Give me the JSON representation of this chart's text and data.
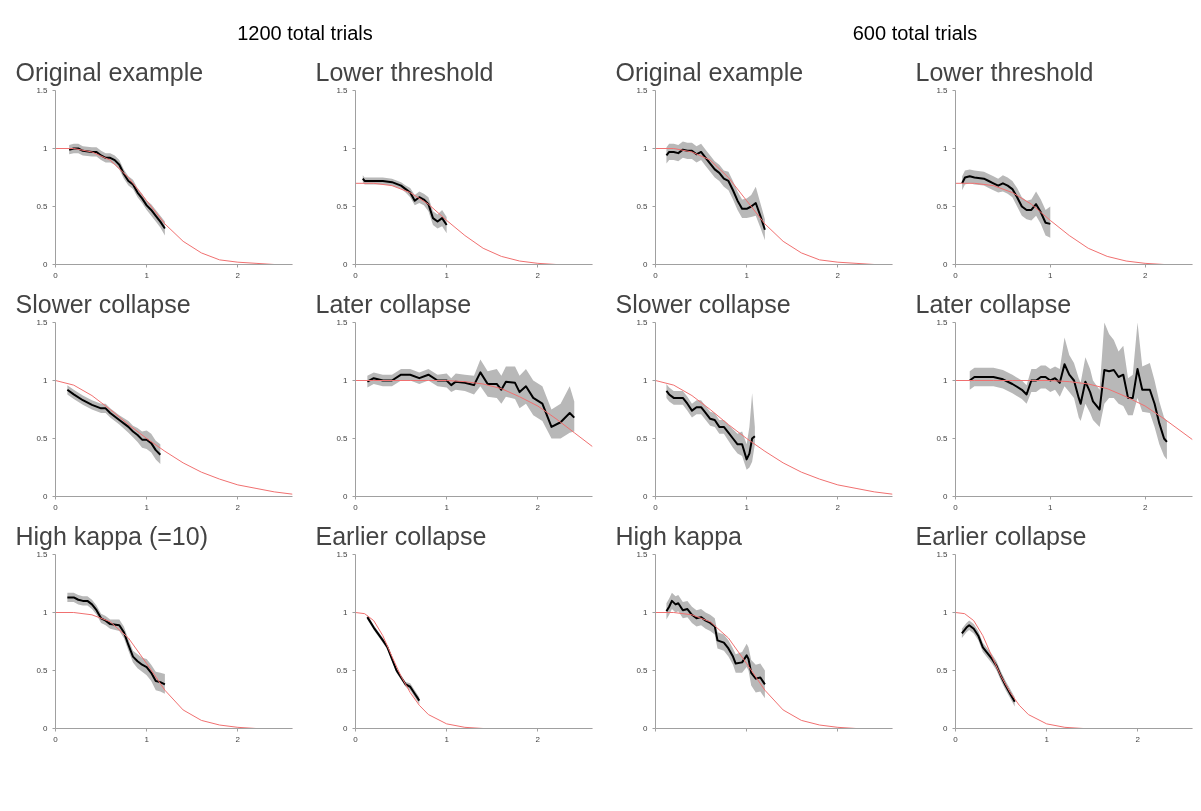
{
  "chart_data": [
    {
      "type": "line",
      "title": "Original example",
      "annotations": [
        "1200 total trials"
      ],
      "xlim": [
        0,
        2.6
      ],
      "ylim": [
        0,
        1.5
      ],
      "xticks": [
        0,
        1,
        2
      ],
      "yticks": [
        0,
        0.5,
        1,
        1.5
      ],
      "series": [
        {
          "color": "#f07070",
          "x": [
            0,
            0.2,
            0.4,
            0.6,
            0.8,
            1.0,
            1.2,
            1.4,
            1.6,
            1.8,
            2.0,
            2.2,
            2.4,
            2.6
          ],
          "values": [
            1,
            1.0,
            0.97,
            0.9,
            0.75,
            0.55,
            0.35,
            0.2,
            0.1,
            0.04,
            0.02,
            0.01,
            0.0,
            0.0
          ]
        },
        {
          "color": "#000000",
          "x": [
            0.15,
            0.2,
            0.25,
            0.3,
            0.4,
            0.45,
            0.5,
            0.55,
            0.6,
            0.65,
            0.7,
            0.75,
            0.8,
            0.85,
            0.9,
            0.95,
            1.0,
            1.05,
            1.1,
            1.15,
            1.2
          ],
          "values": [
            0.99,
            1.0,
            1.0,
            0.98,
            0.97,
            0.97,
            0.94,
            0.92,
            0.92,
            0.9,
            0.86,
            0.78,
            0.72,
            0.69,
            0.62,
            0.57,
            0.51,
            0.47,
            0.42,
            0.37,
            0.31
          ],
          "lower": [
            0.95,
            0.96,
            0.96,
            0.94,
            0.93,
            0.93,
            0.9,
            0.88,
            0.88,
            0.86,
            0.82,
            0.74,
            0.68,
            0.65,
            0.58,
            0.53,
            0.47,
            0.42,
            0.37,
            0.32,
            0.25
          ],
          "upper": [
            1.03,
            1.04,
            1.04,
            1.02,
            1.01,
            1.01,
            0.98,
            0.96,
            0.96,
            0.94,
            0.9,
            0.82,
            0.76,
            0.73,
            0.66,
            0.61,
            0.55,
            0.52,
            0.47,
            0.42,
            0.37
          ]
        }
      ]
    },
    {
      "type": "line",
      "title": "Lower threshold",
      "xlim": [
        0,
        2.6
      ],
      "ylim": [
        0,
        1.5
      ],
      "xticks": [
        0,
        1,
        2
      ],
      "yticks": [
        0,
        0.5,
        1,
        1.5
      ],
      "series": [
        {
          "color": "#f07070",
          "x": [
            0,
            0.2,
            0.4,
            0.6,
            0.8,
            1.0,
            1.2,
            1.4,
            1.6,
            1.8,
            2.0,
            2.2,
            2.4,
            2.6
          ],
          "values": [
            0.7,
            0.7,
            0.68,
            0.62,
            0.52,
            0.38,
            0.25,
            0.14,
            0.07,
            0.03,
            0.01,
            0.0,
            0.0,
            0.0
          ]
        },
        {
          "color": "#000000",
          "x": [
            0.08,
            0.1,
            0.2,
            0.3,
            0.4,
            0.5,
            0.55,
            0.6,
            0.65,
            0.7,
            0.75,
            0.8,
            0.85,
            0.9,
            0.95,
            1.0
          ],
          "values": [
            0.74,
            0.72,
            0.72,
            0.72,
            0.71,
            0.68,
            0.65,
            0.62,
            0.55,
            0.58,
            0.56,
            0.52,
            0.4,
            0.37,
            0.4,
            0.34
          ],
          "lower": [
            0.71,
            0.69,
            0.69,
            0.69,
            0.68,
            0.65,
            0.62,
            0.58,
            0.51,
            0.53,
            0.51,
            0.46,
            0.34,
            0.31,
            0.33,
            0.27
          ],
          "upper": [
            0.77,
            0.75,
            0.75,
            0.75,
            0.74,
            0.71,
            0.68,
            0.66,
            0.6,
            0.63,
            0.61,
            0.58,
            0.46,
            0.43,
            0.47,
            0.41
          ]
        }
      ]
    },
    {
      "type": "line",
      "title": "Original example",
      "annotations": [
        "600 total trials"
      ],
      "xlim": [
        0,
        2.6
      ],
      "ylim": [
        0,
        1.5
      ],
      "xticks": [
        0,
        1,
        2
      ],
      "yticks": [
        0,
        0.5,
        1,
        1.5
      ],
      "series": [
        {
          "color": "#f07070",
          "x": [
            0,
            0.2,
            0.4,
            0.6,
            0.8,
            1.0,
            1.2,
            1.4,
            1.6,
            1.8,
            2.0,
            2.2,
            2.4,
            2.6
          ],
          "values": [
            1,
            1.0,
            0.97,
            0.9,
            0.75,
            0.55,
            0.35,
            0.2,
            0.1,
            0.04,
            0.02,
            0.01,
            0.0,
            0.0
          ]
        },
        {
          "color": "#000000",
          "x": [
            0.12,
            0.15,
            0.2,
            0.25,
            0.3,
            0.35,
            0.4,
            0.45,
            0.5,
            0.55,
            0.6,
            0.65,
            0.7,
            0.75,
            0.8,
            0.85,
            0.9,
            0.95,
            1.0,
            1.05,
            1.1,
            1.15,
            1.2
          ],
          "values": [
            0.94,
            0.97,
            0.97,
            0.96,
            0.99,
            0.98,
            0.98,
            0.95,
            0.97,
            0.92,
            0.87,
            0.82,
            0.79,
            0.74,
            0.72,
            0.64,
            0.55,
            0.48,
            0.48,
            0.5,
            0.53,
            0.42,
            0.3
          ],
          "lower": [
            0.87,
            0.9,
            0.9,
            0.89,
            0.92,
            0.91,
            0.91,
            0.88,
            0.9,
            0.85,
            0.8,
            0.75,
            0.72,
            0.67,
            0.64,
            0.56,
            0.47,
            0.4,
            0.4,
            0.41,
            0.42,
            0.32,
            0.21
          ],
          "upper": [
            1.01,
            1.04,
            1.04,
            1.03,
            1.06,
            1.05,
            1.05,
            1.02,
            1.04,
            0.99,
            0.94,
            0.89,
            0.86,
            0.81,
            0.8,
            0.72,
            0.63,
            0.56,
            0.57,
            0.6,
            0.67,
            0.53,
            0.39
          ]
        }
      ]
    },
    {
      "type": "line",
      "title": "Lower threshold",
      "xlim": [
        0,
        2.5
      ],
      "ylim": [
        0,
        1.5
      ],
      "xticks": [
        0,
        1,
        2
      ],
      "yticks": [
        0,
        0.5,
        1,
        1.5
      ],
      "series": [
        {
          "color": "#f07070",
          "x": [
            0,
            0.2,
            0.4,
            0.6,
            0.8,
            1.0,
            1.2,
            1.4,
            1.6,
            1.8,
            2.0,
            2.2,
            2.4,
            2.5
          ],
          "values": [
            0.7,
            0.7,
            0.68,
            0.62,
            0.52,
            0.38,
            0.25,
            0.14,
            0.07,
            0.03,
            0.01,
            0.0,
            0.0,
            0.0
          ]
        },
        {
          "color": "#000000",
          "x": [
            0.07,
            0.1,
            0.15,
            0.2,
            0.3,
            0.35,
            0.4,
            0.45,
            0.5,
            0.55,
            0.6,
            0.65,
            0.7,
            0.75,
            0.8,
            0.85,
            0.9,
            0.95,
            1.0
          ],
          "values": [
            0.7,
            0.75,
            0.76,
            0.75,
            0.74,
            0.72,
            0.7,
            0.68,
            0.7,
            0.68,
            0.65,
            0.58,
            0.5,
            0.47,
            0.47,
            0.52,
            0.45,
            0.36,
            0.35
          ],
          "lower": [
            0.64,
            0.69,
            0.7,
            0.69,
            0.68,
            0.66,
            0.64,
            0.62,
            0.63,
            0.61,
            0.58,
            0.5,
            0.42,
            0.39,
            0.38,
            0.42,
            0.35,
            0.25,
            0.23
          ],
          "upper": [
            0.76,
            0.81,
            0.82,
            0.81,
            0.8,
            0.78,
            0.76,
            0.74,
            0.77,
            0.75,
            0.72,
            0.66,
            0.58,
            0.55,
            0.56,
            0.63,
            0.56,
            0.47,
            0.5
          ]
        }
      ]
    },
    {
      "type": "line",
      "title": "Slower collapse",
      "xlim": [
        0,
        2.6
      ],
      "ylim": [
        0,
        1.5
      ],
      "xticks": [
        0,
        1,
        2
      ],
      "yticks": [
        0,
        0.5,
        1,
        1.5
      ],
      "series": [
        {
          "color": "#f07070",
          "x": [
            0,
            0.2,
            0.4,
            0.6,
            0.8,
            1.0,
            1.2,
            1.4,
            1.6,
            1.8,
            2.0,
            2.2,
            2.4,
            2.6
          ],
          "values": [
            1,
            0.96,
            0.87,
            0.75,
            0.62,
            0.5,
            0.39,
            0.29,
            0.21,
            0.15,
            0.1,
            0.07,
            0.04,
            0.02
          ]
        },
        {
          "color": "#000000",
          "x": [
            0.13,
            0.2,
            0.3,
            0.4,
            0.5,
            0.55,
            0.6,
            0.7,
            0.8,
            0.85,
            0.9,
            0.95,
            1.0,
            1.05,
            1.1,
            1.15
          ],
          "values": [
            0.92,
            0.88,
            0.83,
            0.79,
            0.76,
            0.76,
            0.72,
            0.66,
            0.6,
            0.56,
            0.53,
            0.49,
            0.49,
            0.46,
            0.4,
            0.36
          ],
          "lower": [
            0.88,
            0.84,
            0.79,
            0.75,
            0.72,
            0.72,
            0.68,
            0.62,
            0.55,
            0.51,
            0.47,
            0.42,
            0.41,
            0.38,
            0.32,
            0.28
          ],
          "upper": [
            0.96,
            0.92,
            0.87,
            0.83,
            0.8,
            0.8,
            0.76,
            0.7,
            0.65,
            0.61,
            0.59,
            0.56,
            0.57,
            0.54,
            0.48,
            0.45
          ]
        }
      ]
    },
    {
      "type": "line",
      "title": "Later collapse",
      "xlim": [
        0,
        2.6
      ],
      "ylim": [
        0,
        1.5
      ],
      "xticks": [
        0,
        1,
        2
      ],
      "yticks": [
        0,
        0.5,
        1,
        1.5
      ],
      "series": [
        {
          "color": "#f07070",
          "x": [
            0,
            0.2,
            0.4,
            0.6,
            0.8,
            1.0,
            1.2,
            1.4,
            1.6,
            1.8,
            2.0,
            2.2,
            2.4,
            2.6
          ],
          "values": [
            1,
            1,
            1,
            1.0,
            1.0,
            1.0,
            0.99,
            0.97,
            0.93,
            0.86,
            0.78,
            0.67,
            0.55,
            0.43
          ]
        },
        {
          "color": "#000000",
          "x": [
            0.13,
            0.2,
            0.3,
            0.4,
            0.5,
            0.6,
            0.7,
            0.8,
            0.9,
            1.0,
            1.05,
            1.1,
            1.2,
            1.3,
            1.37,
            1.45,
            1.55,
            1.6,
            1.65,
            1.75,
            1.8,
            1.87,
            1.95,
            2.05,
            2.15,
            2.25,
            2.35,
            2.4
          ],
          "values": [
            0.99,
            1.02,
            1.0,
            1.0,
            1.05,
            1.05,
            1.02,
            1.05,
            1.0,
            1.0,
            0.96,
            0.99,
            0.98,
            0.96,
            1.07,
            0.97,
            0.97,
            0.92,
            0.99,
            0.98,
            0.9,
            0.95,
            0.85,
            0.8,
            0.6,
            0.64,
            0.72,
            0.68
          ],
          "lower": [
            0.94,
            0.97,
            0.95,
            0.95,
            1.0,
            1.0,
            0.97,
            1.0,
            0.95,
            0.94,
            0.9,
            0.92,
            0.91,
            0.88,
            0.95,
            0.86,
            0.85,
            0.8,
            0.86,
            0.84,
            0.76,
            0.8,
            0.7,
            0.65,
            0.5,
            0.5,
            0.55,
            0.56
          ],
          "upper": [
            1.04,
            1.07,
            1.05,
            1.05,
            1.1,
            1.1,
            1.07,
            1.1,
            1.05,
            1.06,
            1.02,
            1.06,
            1.05,
            1.04,
            1.18,
            1.08,
            1.1,
            1.04,
            1.12,
            1.12,
            1.04,
            1.1,
            1.0,
            0.95,
            0.75,
            0.8,
            0.95,
            0.82
          ]
        }
      ]
    },
    {
      "type": "line",
      "title": "Slower collapse",
      "xlim": [
        0,
        2.6
      ],
      "ylim": [
        0,
        1.5
      ],
      "xticks": [
        0,
        1,
        2
      ],
      "yticks": [
        0,
        0.5,
        1,
        1.5
      ],
      "series": [
        {
          "color": "#f07070",
          "x": [
            0,
            0.2,
            0.4,
            0.6,
            0.8,
            1.0,
            1.2,
            1.4,
            1.6,
            1.8,
            2.0,
            2.2,
            2.4,
            2.6
          ],
          "values": [
            1,
            0.96,
            0.87,
            0.75,
            0.62,
            0.5,
            0.39,
            0.29,
            0.21,
            0.15,
            0.1,
            0.07,
            0.04,
            0.02
          ]
        },
        {
          "color": "#000000",
          "x": [
            0.12,
            0.15,
            0.2,
            0.3,
            0.35,
            0.4,
            0.45,
            0.5,
            0.55,
            0.6,
            0.65,
            0.7,
            0.75,
            0.8,
            0.85,
            0.9,
            0.95,
            1.0,
            1.03,
            1.06,
            1.09
          ],
          "values": [
            0.91,
            0.88,
            0.85,
            0.85,
            0.8,
            0.74,
            0.77,
            0.77,
            0.72,
            0.67,
            0.66,
            0.6,
            0.6,
            0.55,
            0.5,
            0.45,
            0.45,
            0.32,
            0.37,
            0.5,
            0.52
          ],
          "lower": [
            0.85,
            0.82,
            0.79,
            0.79,
            0.74,
            0.68,
            0.71,
            0.71,
            0.66,
            0.61,
            0.6,
            0.54,
            0.54,
            0.48,
            0.42,
            0.37,
            0.35,
            0.23,
            0.25,
            0.3,
            0.45
          ],
          "upper": [
            0.97,
            0.94,
            0.91,
            0.91,
            0.86,
            0.8,
            0.83,
            0.83,
            0.78,
            0.73,
            0.72,
            0.66,
            0.66,
            0.62,
            0.58,
            0.54,
            0.56,
            0.45,
            0.6,
            0.89,
            0.6
          ]
        }
      ]
    },
    {
      "type": "line",
      "title": "Later collapse",
      "xlim": [
        0,
        2.5
      ],
      "ylim": [
        0,
        1.5
      ],
      "xticks": [
        0,
        1,
        2
      ],
      "yticks": [
        0,
        0.5,
        1,
        1.5
      ],
      "series": [
        {
          "color": "#f07070",
          "x": [
            0,
            0.2,
            0.4,
            0.6,
            0.8,
            1.0,
            1.2,
            1.4,
            1.6,
            1.8,
            2.0,
            2.2,
            2.4,
            2.5
          ],
          "values": [
            1,
            1,
            1,
            1.0,
            1.0,
            1.0,
            0.99,
            0.97,
            0.93,
            0.86,
            0.78,
            0.67,
            0.55,
            0.49
          ]
        },
        {
          "color": "#000000",
          "x": [
            0.15,
            0.2,
            0.3,
            0.4,
            0.5,
            0.6,
            0.7,
            0.75,
            0.8,
            0.85,
            0.9,
            0.95,
            1.0,
            1.05,
            1.1,
            1.15,
            1.2,
            1.25,
            1.3,
            1.32,
            1.37,
            1.42,
            1.45,
            1.52,
            1.57,
            1.62,
            1.67,
            1.72,
            1.77,
            1.82,
            1.87,
            1.92,
            1.97,
            2.05,
            2.1,
            2.15,
            2.2,
            2.23
          ],
          "values": [
            1.0,
            1.03,
            1.03,
            1.03,
            1.01,
            0.97,
            0.92,
            0.88,
            1.0,
            1.0,
            1.03,
            1.03,
            1.0,
            1.02,
            0.98,
            1.14,
            1.05,
            1.0,
            0.85,
            0.8,
            0.99,
            0.9,
            0.82,
            0.75,
            1.09,
            1.08,
            1.09,
            1.03,
            1.05,
            0.85,
            0.85,
            1.1,
            0.92,
            0.92,
            0.8,
            0.63,
            0.5,
            0.47
          ],
          "lower": [
            0.92,
            0.95,
            0.95,
            0.95,
            0.93,
            0.89,
            0.84,
            0.8,
            0.9,
            0.9,
            0.93,
            0.93,
            0.9,
            0.92,
            0.86,
            0.95,
            0.9,
            0.85,
            0.68,
            0.65,
            0.8,
            0.72,
            0.66,
            0.6,
            0.8,
            0.85,
            0.85,
            0.8,
            0.78,
            0.7,
            0.7,
            0.85,
            0.73,
            0.72,
            0.6,
            0.45,
            0.35,
            0.32
          ],
          "upper": [
            1.08,
            1.11,
            1.11,
            1.11,
            1.09,
            1.05,
            1.0,
            0.96,
            1.1,
            1.1,
            1.13,
            1.13,
            1.1,
            1.12,
            1.1,
            1.37,
            1.22,
            1.15,
            1.02,
            0.98,
            1.2,
            1.1,
            1.0,
            0.92,
            1.5,
            1.4,
            1.35,
            1.25,
            1.3,
            1.02,
            1.05,
            1.5,
            1.12,
            1.15,
            1.0,
            0.82,
            0.68,
            0.65
          ]
        }
      ]
    },
    {
      "type": "line",
      "title": "High kappa (=10)",
      "xlim": [
        0,
        2.6
      ],
      "ylim": [
        0,
        1.5
      ],
      "xticks": [
        0,
        1,
        2
      ],
      "yticks": [
        0,
        0.5,
        1,
        1.5
      ],
      "series": [
        {
          "color": "#f07070",
          "x": [
            0,
            0.2,
            0.4,
            0.6,
            0.8,
            1.0,
            1.2,
            1.4,
            1.6,
            1.8,
            2.0,
            2.2,
            2.4,
            2.6
          ],
          "values": [
            1,
            1.0,
            0.98,
            0.92,
            0.78,
            0.56,
            0.33,
            0.16,
            0.07,
            0.03,
            0.01,
            0.0,
            0.0,
            0.0
          ]
        },
        {
          "color": "#000000",
          "x": [
            0.13,
            0.2,
            0.25,
            0.3,
            0.35,
            0.4,
            0.45,
            0.5,
            0.55,
            0.6,
            0.7,
            0.75,
            0.8,
            0.85,
            0.9,
            0.95,
            1.0,
            1.05,
            1.1,
            1.15,
            1.2
          ],
          "values": [
            1.13,
            1.13,
            1.11,
            1.1,
            1.1,
            1.07,
            1.02,
            0.95,
            0.93,
            0.9,
            0.89,
            0.83,
            0.72,
            0.62,
            0.58,
            0.55,
            0.53,
            0.48,
            0.41,
            0.4,
            0.38
          ],
          "lower": [
            1.09,
            1.09,
            1.07,
            1.06,
            1.06,
            1.03,
            0.98,
            0.91,
            0.89,
            0.86,
            0.84,
            0.78,
            0.67,
            0.57,
            0.52,
            0.49,
            0.46,
            0.41,
            0.33,
            0.32,
            0.3
          ],
          "upper": [
            1.17,
            1.17,
            1.15,
            1.14,
            1.14,
            1.11,
            1.06,
            0.99,
            0.97,
            0.94,
            0.94,
            0.88,
            0.77,
            0.67,
            0.64,
            0.61,
            0.6,
            0.55,
            0.49,
            0.48,
            0.47
          ]
        }
      ]
    },
    {
      "type": "line",
      "title": "Earlier collapse",
      "xlim": [
        0,
        2.6
      ],
      "ylim": [
        0,
        1.5
      ],
      "xticks": [
        0,
        1,
        2
      ],
      "yticks": [
        0,
        0.5,
        1,
        1.5
      ],
      "series": [
        {
          "color": "#f07070",
          "x": [
            0,
            0.1,
            0.2,
            0.3,
            0.4,
            0.5,
            0.6,
            0.7,
            0.8,
            1.0,
            1.2,
            1.4,
            2.0,
            2.6
          ],
          "values": [
            1,
            0.99,
            0.93,
            0.8,
            0.62,
            0.45,
            0.31,
            0.2,
            0.12,
            0.04,
            0.01,
            0.0,
            0.0,
            0.0
          ]
        },
        {
          "color": "#000000",
          "x": [
            0.13,
            0.2,
            0.3,
            0.35,
            0.4,
            0.45,
            0.5,
            0.55,
            0.6,
            0.65,
            0.7
          ],
          "values": [
            0.96,
            0.87,
            0.76,
            0.7,
            0.6,
            0.5,
            0.44,
            0.38,
            0.36,
            0.3,
            0.24
          ],
          "lower": [
            0.94,
            0.85,
            0.74,
            0.68,
            0.58,
            0.48,
            0.42,
            0.36,
            0.33,
            0.27,
            0.21
          ],
          "upper": [
            0.98,
            0.89,
            0.78,
            0.72,
            0.62,
            0.52,
            0.46,
            0.4,
            0.39,
            0.33,
            0.27
          ]
        }
      ]
    },
    {
      "type": "line",
      "title": "High kappa",
      "tick_labels": "y",
      "xlim": [
        0,
        2.6
      ],
      "ylim": [
        0,
        1.5
      ],
      "xticks": [
        0,
        1,
        2
      ],
      "yticks": [
        0,
        0.5,
        1,
        1.5
      ],
      "series": [
        {
          "color": "#f07070",
          "x": [
            0,
            0.2,
            0.4,
            0.6,
            0.8,
            1.0,
            1.2,
            1.4,
            1.6,
            1.8,
            2.0,
            2.2,
            2.4,
            2.6
          ],
          "values": [
            1,
            1.0,
            0.98,
            0.92,
            0.78,
            0.56,
            0.33,
            0.16,
            0.07,
            0.03,
            0.01,
            0.0,
            0.0,
            0.0
          ]
        },
        {
          "color": "#000000",
          "x": [
            0.12,
            0.15,
            0.18,
            0.22,
            0.25,
            0.3,
            0.35,
            0.4,
            0.45,
            0.5,
            0.55,
            0.6,
            0.65,
            0.68,
            0.75,
            0.8,
            0.85,
            0.88,
            0.95,
            1.0,
            1.02,
            1.05,
            1.1,
            1.15,
            1.2
          ],
          "values": [
            1.01,
            1.05,
            1.1,
            1.07,
            1.08,
            1.02,
            1.03,
            0.98,
            0.95,
            0.96,
            0.93,
            0.91,
            0.88,
            0.76,
            0.74,
            0.69,
            0.62,
            0.56,
            0.57,
            0.63,
            0.6,
            0.48,
            0.43,
            0.44,
            0.38
          ],
          "lower": [
            0.94,
            0.98,
            1.03,
            1.0,
            1.01,
            0.95,
            0.96,
            0.91,
            0.88,
            0.89,
            0.86,
            0.84,
            0.81,
            0.69,
            0.67,
            0.62,
            0.55,
            0.48,
            0.48,
            0.53,
            0.5,
            0.37,
            0.31,
            0.32,
            0.26
          ],
          "upper": [
            1.08,
            1.12,
            1.17,
            1.14,
            1.15,
            1.09,
            1.1,
            1.05,
            1.02,
            1.03,
            1.0,
            0.98,
            0.95,
            0.83,
            0.81,
            0.76,
            0.69,
            0.64,
            0.66,
            0.73,
            0.7,
            0.59,
            0.55,
            0.56,
            0.5
          ]
        }
      ]
    },
    {
      "type": "line",
      "title": "Earlier collapse",
      "xlim": [
        0,
        2.6
      ],
      "ylim": [
        0,
        1.5
      ],
      "xticks": [
        0,
        1,
        2
      ],
      "yticks": [
        0,
        0.5,
        1,
        1.5
      ],
      "series": [
        {
          "color": "#f07070",
          "x": [
            0,
            0.1,
            0.2,
            0.3,
            0.4,
            0.5,
            0.6,
            0.7,
            0.8,
            1.0,
            1.2,
            1.4,
            2.0,
            2.6
          ],
          "values": [
            1,
            0.99,
            0.93,
            0.8,
            0.62,
            0.45,
            0.31,
            0.2,
            0.12,
            0.04,
            0.01,
            0.0,
            0.0,
            0.0
          ]
        },
        {
          "color": "#000000",
          "x": [
            0.07,
            0.12,
            0.15,
            0.2,
            0.25,
            0.3,
            0.35,
            0.4,
            0.45,
            0.5,
            0.55,
            0.6,
            0.65
          ],
          "values": [
            0.82,
            0.87,
            0.89,
            0.86,
            0.8,
            0.7,
            0.65,
            0.6,
            0.54,
            0.45,
            0.37,
            0.3,
            0.23
          ],
          "lower": [
            0.78,
            0.83,
            0.85,
            0.82,
            0.76,
            0.66,
            0.61,
            0.56,
            0.5,
            0.41,
            0.33,
            0.26,
            0.19
          ],
          "upper": [
            0.86,
            0.91,
            0.93,
            0.9,
            0.84,
            0.74,
            0.69,
            0.64,
            0.58,
            0.49,
            0.41,
            0.34,
            0.27
          ]
        }
      ]
    }
  ]
}
